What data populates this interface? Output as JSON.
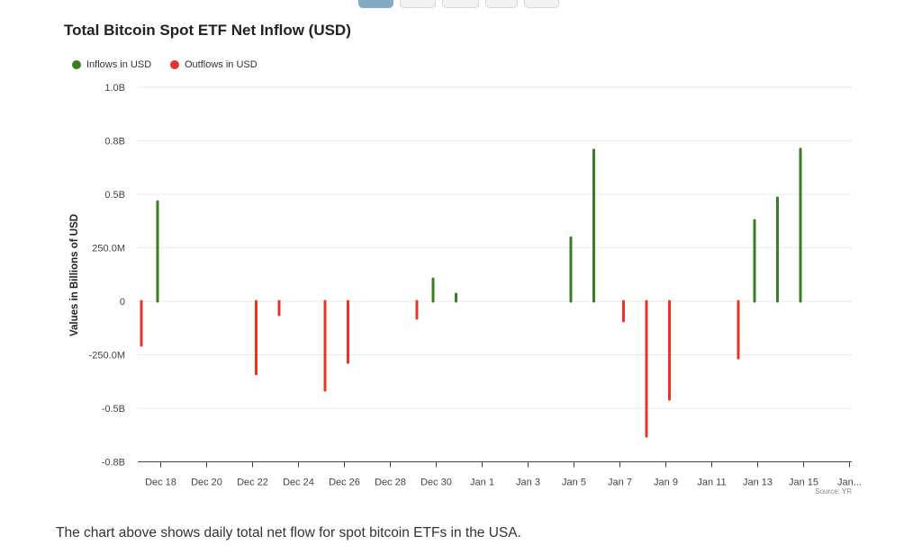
{
  "tabs": [
    {
      "label": "",
      "active": true
    },
    {
      "label": "",
      "active": false
    },
    {
      "label": "",
      "active": false
    },
    {
      "label": "",
      "active": false
    },
    {
      "label": "",
      "active": false
    }
  ],
  "caption": "The chart above shows daily total net flow for spot bitcoin ETFs in the USA.",
  "chart_data": {
    "type": "bar",
    "title": "Total Bitcoin Spot ETF Net Inflow (USD)",
    "ylabel": "Values in Billions of USD",
    "xlabel": "",
    "source": "Source: YR",
    "legend_position": "top-left",
    "grid": true,
    "colors": {
      "inflow": "#3b7d23",
      "outflow": "#e8352a"
    },
    "ylim": [
      -0.75,
      1.0
    ],
    "yticks": [
      {
        "value": 1.0,
        "label": "1.0B"
      },
      {
        "value": 0.75,
        "label": "0.8B"
      },
      {
        "value": 0.5,
        "label": "0.5B"
      },
      {
        "value": 0.25,
        "label": "250.0M"
      },
      {
        "value": 0,
        "label": "0"
      },
      {
        "value": -0.25,
        "label": "-250.0M"
      },
      {
        "value": -0.5,
        "label": "-0.5B"
      },
      {
        "value": -0.75,
        "label": "-0.8B"
      }
    ],
    "xlim": [
      "Dec 17",
      "Jan 17"
    ],
    "xticks": [
      "Dec 18",
      "Dec 20",
      "Dec 22",
      "Dec 24",
      "Dec 26",
      "Dec 28",
      "Dec 30",
      "Jan 1",
      "Jan 3",
      "Jan 5",
      "Jan 7",
      "Jan 9",
      "Jan 11",
      "Jan 13",
      "Jan 15",
      "Jan..."
    ],
    "series": [
      {
        "name": "Inflows in USD",
        "points": [
          {
            "date": "Dec 18",
            "value": 0.466
          },
          {
            "date": "Dec 30",
            "value": 0.105
          },
          {
            "date": "Dec 31",
            "value": 0.034
          },
          {
            "date": "Jan 5",
            "value": 0.297
          },
          {
            "date": "Jan 6",
            "value": 0.707
          },
          {
            "date": "Jan 13",
            "value": 0.378
          },
          {
            "date": "Jan 14",
            "value": 0.483
          },
          {
            "date": "Jan 15",
            "value": 0.711
          }
        ]
      },
      {
        "name": "Outflows in USD",
        "points": [
          {
            "date": "Dec 17",
            "value": -0.206
          },
          {
            "date": "Dec 22",
            "value": -0.34
          },
          {
            "date": "Dec 23",
            "value": -0.063
          },
          {
            "date": "Dec 25",
            "value": -0.416
          },
          {
            "date": "Dec 26",
            "value": -0.286
          },
          {
            "date": "Dec 29",
            "value": -0.08
          },
          {
            "date": "Jan 7",
            "value": -0.092
          },
          {
            "date": "Jan 8",
            "value": -0.631
          },
          {
            "date": "Jan 9",
            "value": -0.458
          },
          {
            "date": "Jan 12",
            "value": -0.265
          }
        ]
      }
    ]
  }
}
